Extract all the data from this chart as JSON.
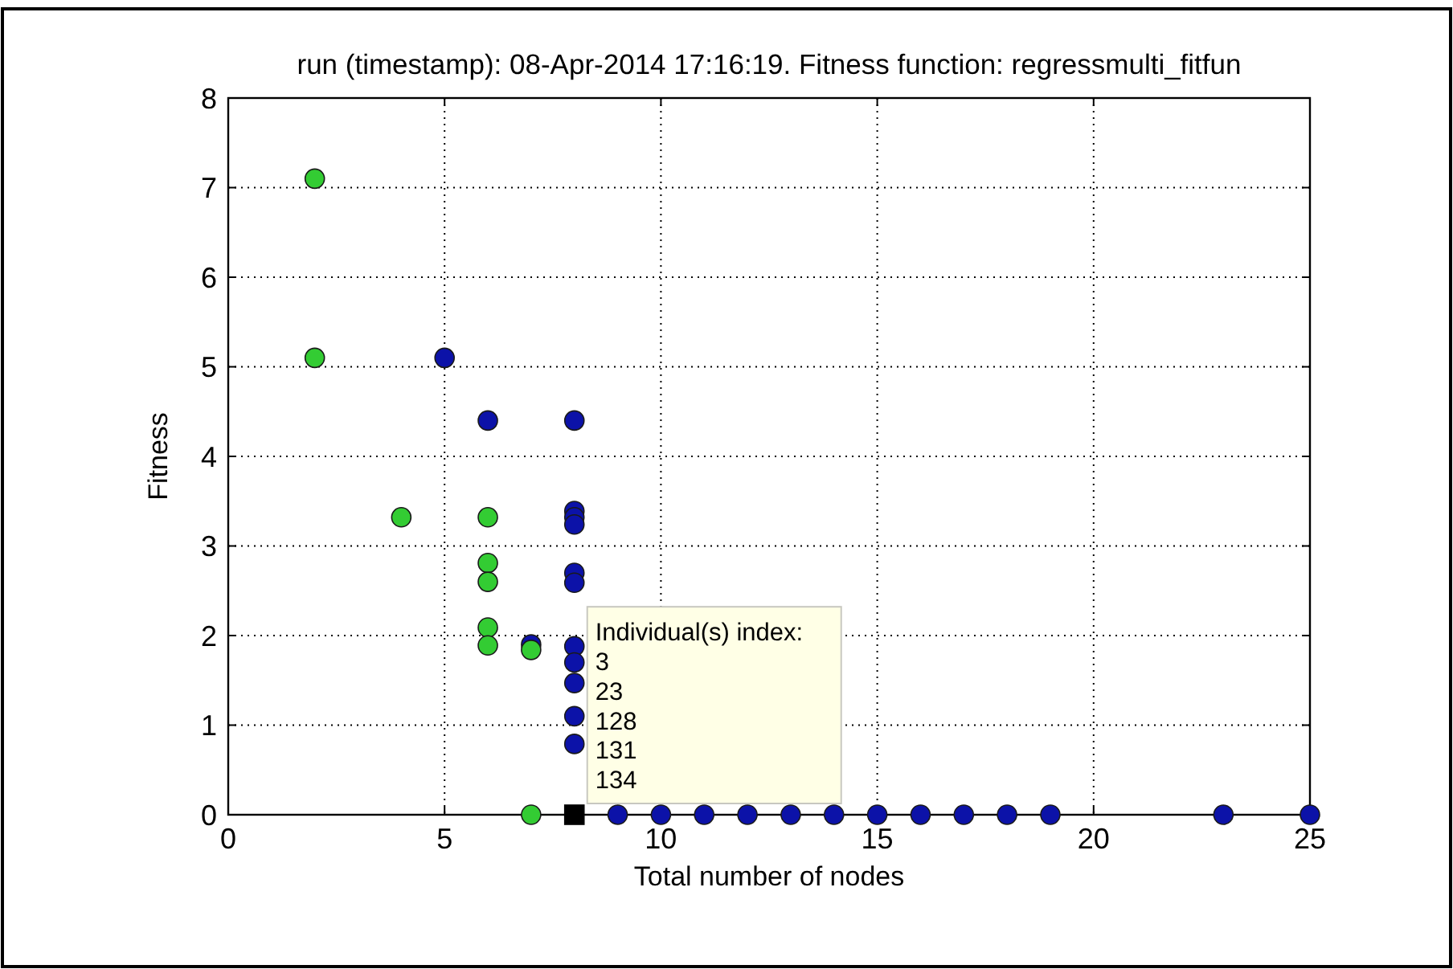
{
  "chart_data": {
    "type": "scatter",
    "title": "run (timestamp): 08-Apr-2014 17:16:19. Fitness function: regressmulti_fitfun",
    "xlabel": "Total number of nodes",
    "ylabel": "Fitness",
    "xlim": [
      0,
      25
    ],
    "xticks": [
      0,
      5,
      10,
      15,
      20,
      25
    ],
    "ylim": [
      0,
      8
    ],
    "yticks": [
      0,
      1,
      2,
      3,
      4,
      5,
      6,
      7,
      8
    ],
    "grid": true,
    "series": [
      {
        "color": "#0c12a8",
        "marker": "circle",
        "x": [
          5,
          6,
          8,
          8,
          8,
          8,
          8,
          8,
          7,
          8,
          8,
          8,
          8,
          8,
          9,
          10,
          11,
          12,
          13,
          14,
          15,
          16,
          17,
          18,
          19,
          23,
          25
        ],
        "values": [
          5.1,
          4.4,
          4.4,
          3.39,
          3.32,
          3.24,
          2.7,
          2.59,
          1.9,
          1.88,
          1.7,
          1.47,
          1.1,
          0.79,
          0,
          0,
          0,
          0,
          0,
          0,
          0,
          0,
          0,
          0,
          0,
          0,
          0
        ]
      },
      {
        "color": "#33cc33",
        "marker": "circle",
        "x": [
          2,
          2,
          4,
          6,
          6,
          6,
          6,
          6,
          7,
          7
        ],
        "values": [
          7.1,
          5.1,
          3.32,
          3.32,
          2.81,
          2.6,
          2.09,
          1.89,
          1.84,
          0
        ]
      },
      {
        "color": "#000000",
        "marker": "square",
        "x": [
          8
        ],
        "values": [
          0
        ]
      }
    ],
    "annotations": [
      {
        "text": "Individual(s) index:\n3\n23\n128\n131\n134",
        "x": 8,
        "y": 0
      }
    ]
  }
}
